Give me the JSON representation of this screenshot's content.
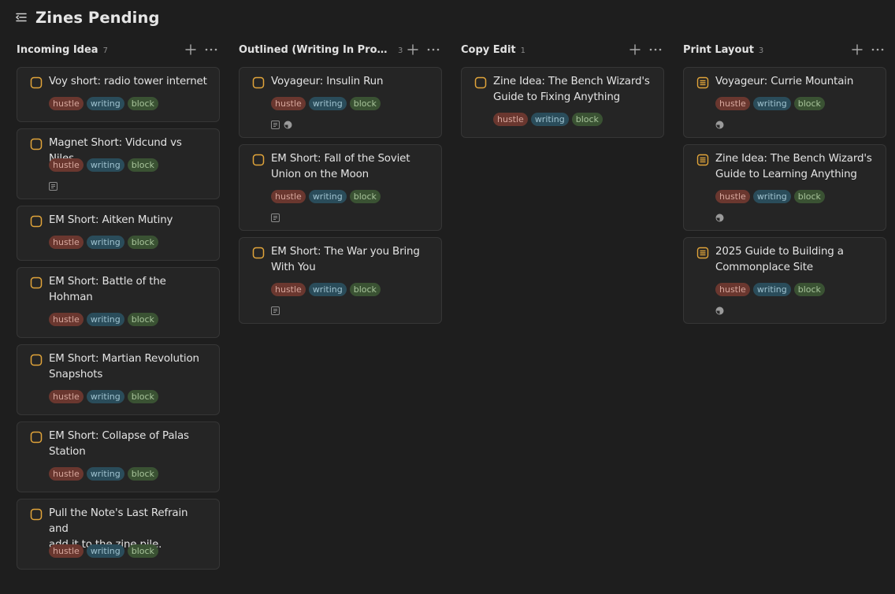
{
  "page": {
    "title": "Zines Pending"
  },
  "tag_labels": {
    "hustle": "hustle",
    "writing": "writing",
    "block": "block"
  },
  "columns": [
    {
      "title": "Incoming Idea",
      "count": "7",
      "cards": [
        {
          "title_lines": [
            "Voy short: radio tower internet"
          ],
          "icon": "checkbox-icon",
          "meta": []
        },
        {
          "title_lines": [
            "Magnet Short: Vidcund vs Niles"
          ],
          "icon": "checkbox-icon",
          "meta": [
            "note-icon"
          ]
        },
        {
          "title_lines": [
            "EM Short: Aitken Mutiny"
          ],
          "icon": "checkbox-icon",
          "meta": []
        },
        {
          "title_lines": [
            "EM Short: Battle of the",
            "Hohman"
          ],
          "icon": "checkbox-icon",
          "meta": []
        },
        {
          "title_lines": [
            "EM Short: Martian Revolution",
            "Snapshots"
          ],
          "icon": "checkbox-icon",
          "meta": []
        },
        {
          "title_lines": [
            "EM Short: Collapse of Palas",
            "Station"
          ],
          "icon": "checkbox-icon",
          "meta": []
        },
        {
          "title_lines": [
            "Pull the Note's Last Refrain and",
            "add it to the zine pile."
          ],
          "icon": "checkbox-icon",
          "meta": []
        }
      ]
    },
    {
      "title": "Outlined (Writing In Progre…",
      "count": "3",
      "cards": [
        {
          "title_lines": [
            "Voyageur: Insulin Run"
          ],
          "icon": "checkbox-icon",
          "meta": [
            "note-icon",
            "progress-icon"
          ]
        },
        {
          "title_lines": [
            "EM Short: Fall of the Soviet",
            "Union on the Moon"
          ],
          "icon": "checkbox-icon",
          "meta": [
            "note-icon"
          ]
        },
        {
          "title_lines": [
            "EM Short: The War you Bring",
            "With You"
          ],
          "icon": "checkbox-icon",
          "meta": [
            "note-icon"
          ]
        }
      ]
    },
    {
      "title": "Copy Edit",
      "count": "1",
      "cards": [
        {
          "title_lines": [
            "Zine Idea: The Bench Wizard's",
            "Guide to Fixing Anything"
          ],
          "icon": "checkbox-icon",
          "meta": []
        }
      ]
    },
    {
      "title": "Print Layout",
      "count": "3",
      "cards": [
        {
          "title_lines": [
            "Voyageur: Currie Mountain"
          ],
          "icon": "list-icon",
          "meta": [
            "progress-icon"
          ]
        },
        {
          "title_lines": [
            "Zine Idea: The Bench Wizard's",
            "Guide to Learning Anything"
          ],
          "icon": "list-icon",
          "meta": [
            "progress-icon"
          ]
        },
        {
          "title_lines": [
            "2025 Guide to Building a",
            "Commonplace Site"
          ],
          "icon": "list-icon",
          "meta": [
            "progress-icon"
          ]
        }
      ]
    }
  ],
  "colors": {
    "background": "#1e1e1e",
    "card": "#252525",
    "accent_orange": "#e0a43a",
    "tag_hustle": "#6a372f",
    "tag_writing": "#2a4c5a",
    "tag_block": "#3a5233"
  }
}
